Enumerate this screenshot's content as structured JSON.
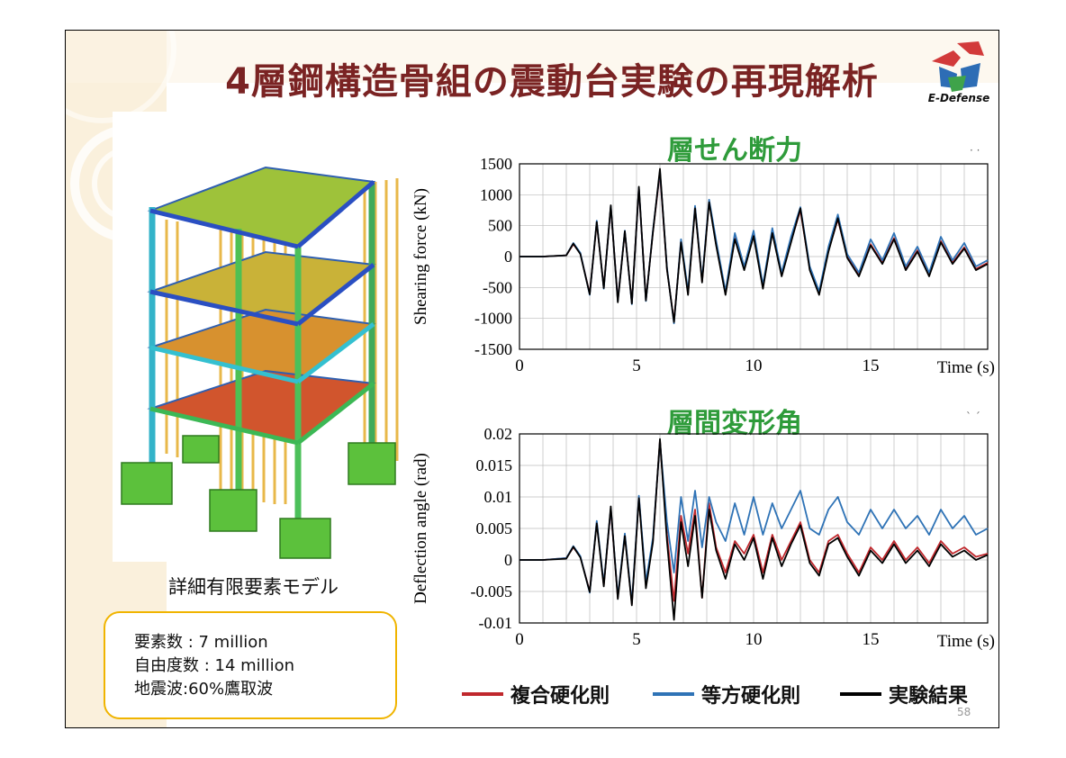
{
  "slide": {
    "title": "4層鋼構造骨組の震動台実験の再現解析",
    "logo_text": "E-Defense",
    "page_number": "58",
    "model_caption": "詳細有限要素モデル",
    "info_lines": [
      "要素数 : 7 million",
      "自由度数 : 14 million",
      "地震波:60%鷹取波"
    ]
  },
  "legend": [
    {
      "label": "複合硬化則",
      "color": "#c0282d"
    },
    {
      "label": "等方硬化則",
      "color": "#2f73b6"
    },
    {
      "label": "実験結果",
      "color": "#000000"
    }
  ],
  "chart_data": [
    {
      "type": "line",
      "title": "層せん断力",
      "xlabel": "Time (s)",
      "ylabel": "Shearing force (kN)",
      "xlim": [
        0,
        20
      ],
      "ylim": [
        -1500,
        1500
      ],
      "xticks": [
        0,
        5,
        10,
        15
      ],
      "yticks": [
        1500,
        1000,
        500,
        0,
        -500,
        -1000,
        -1500
      ],
      "ytick_labels": [
        "1500",
        "1000",
        "500",
        "0",
        "-500",
        "-1000",
        "-1500"
      ],
      "grid": true,
      "x": [
        0,
        1,
        2,
        2.3,
        2.6,
        3.0,
        3.3,
        3.6,
        3.9,
        4.2,
        4.5,
        4.8,
        5.1,
        5.4,
        5.7,
        6.0,
        6.3,
        6.6,
        6.9,
        7.2,
        7.5,
        7.8,
        8.1,
        8.4,
        8.8,
        9.2,
        9.6,
        10.0,
        10.4,
        10.8,
        11.2,
        11.6,
        12.0,
        12.4,
        12.8,
        13.2,
        13.6,
        14.0,
        14.5,
        15.0,
        15.5,
        16.0,
        16.5,
        17.0,
        17.5,
        18.0,
        18.5,
        19.0,
        19.5,
        20
      ],
      "series": [
        {
          "name": "複合硬化則",
          "values": [
            0,
            0,
            20,
            200,
            50,
            -600,
            550,
            -500,
            800,
            -700,
            400,
            -750,
            1100,
            -700,
            400,
            1350,
            -200,
            -1050,
            250,
            -600,
            800,
            -400,
            900,
            200,
            -600,
            300,
            -200,
            350,
            -500,
            400,
            -300,
            250,
            750,
            -200,
            -600,
            100,
            600,
            0,
            -300,
            200,
            -100,
            300,
            -200,
            100,
            -300,
            250,
            -100,
            150,
            -200,
            -100
          ]
        },
        {
          "name": "等方硬化則",
          "values": [
            0,
            0,
            20,
            220,
            60,
            -620,
            580,
            -520,
            820,
            -720,
            420,
            -770,
            1120,
            -720,
            420,
            1380,
            -180,
            -1080,
            280,
            -560,
            820,
            -380,
            920,
            260,
            -560,
            380,
            -160,
            420,
            -460,
            460,
            -260,
            320,
            800,
            -160,
            -560,
            160,
            680,
            40,
            -260,
            280,
            -60,
            380,
            -160,
            160,
            -260,
            320,
            -60,
            220,
            -160,
            -60
          ]
        },
        {
          "name": "実験結果",
          "values": [
            0,
            0,
            20,
            210,
            40,
            -610,
            560,
            -510,
            830,
            -740,
            410,
            -760,
            1130,
            -710,
            390,
            1420,
            -210,
            -1060,
            230,
            -620,
            780,
            -420,
            880,
            180,
            -620,
            280,
            -220,
            330,
            -520,
            380,
            -320,
            230,
            780,
            -220,
            -620,
            80,
            620,
            -20,
            -320,
            180,
            -120,
            280,
            -220,
            80,
            -320,
            230,
            -120,
            130,
            -220,
            -120
          ]
        }
      ]
    },
    {
      "type": "line",
      "title": "層間変形角",
      "xlabel": "Time (s)",
      "ylabel": "Deflection angle (rad)",
      "xlim": [
        0,
        20
      ],
      "ylim": [
        -0.01,
        0.02
      ],
      "xticks": [
        0,
        5,
        10,
        15
      ],
      "yticks": [
        0.02,
        0.015,
        0.01,
        0.005,
        0,
        -0.005,
        -0.01
      ],
      "ytick_labels": [
        "0.02",
        "0.015",
        "0.01",
        "0.005",
        "0",
        "-0.005",
        "-0.01"
      ],
      "grid": true,
      "x": [
        0,
        1,
        2,
        2.3,
        2.6,
        3.0,
        3.3,
        3.6,
        3.9,
        4.2,
        4.5,
        4.8,
        5.1,
        5.4,
        5.7,
        6.0,
        6.3,
        6.6,
        6.9,
        7.2,
        7.5,
        7.8,
        8.1,
        8.4,
        8.8,
        9.2,
        9.6,
        10.0,
        10.4,
        10.8,
        11.2,
        11.6,
        12.0,
        12.4,
        12.8,
        13.2,
        13.6,
        14.0,
        14.5,
        15.0,
        15.5,
        16.0,
        16.5,
        17.0,
        17.5,
        18.0,
        18.5,
        19.0,
        19.5,
        20
      ],
      "series": [
        {
          "name": "複合硬化則",
          "values": [
            0,
            0,
            0.0003,
            0.002,
            0.0005,
            -0.005,
            0.006,
            -0.004,
            0.008,
            -0.006,
            0.004,
            -0.007,
            0.01,
            -0.004,
            0.003,
            0.019,
            0.004,
            -0.0065,
            0.007,
            0.001,
            0.008,
            -0.006,
            0.009,
            0.002,
            -0.002,
            0.003,
            0.001,
            0.004,
            -0.002,
            0.004,
            0.0,
            0.003,
            0.006,
            0.0,
            -0.002,
            0.003,
            0.004,
            0.001,
            -0.002,
            0.002,
            0.0,
            0.003,
            0.0,
            0.002,
            -0.0005,
            0.003,
            0.001,
            0.002,
            0.0005,
            0.001
          ]
        },
        {
          "name": "等方硬化則",
          "values": [
            0,
            0,
            0.0003,
            0.0022,
            0.0006,
            -0.0052,
            0.0062,
            -0.0038,
            0.0082,
            -0.0058,
            0.0042,
            -0.0068,
            0.0102,
            -0.0035,
            0.0035,
            0.0188,
            0.006,
            -0.002,
            0.01,
            0.003,
            0.011,
            0.002,
            0.01,
            0.006,
            0.003,
            0.009,
            0.004,
            0.01,
            0.004,
            0.009,
            0.005,
            0.008,
            0.011,
            0.005,
            0.004,
            0.008,
            0.01,
            0.006,
            0.004,
            0.008,
            0.005,
            0.008,
            0.005,
            0.007,
            0.004,
            0.008,
            0.005,
            0.007,
            0.004,
            0.005
          ]
        },
        {
          "name": "実験結果",
          "values": [
            0,
            0,
            0.0002,
            0.0021,
            0.0004,
            -0.0051,
            0.0058,
            -0.0042,
            0.0085,
            -0.0062,
            0.0038,
            -0.0072,
            0.0098,
            -0.0045,
            0.0028,
            0.0192,
            0.003,
            -0.0095,
            0.006,
            -0.001,
            0.007,
            -0.006,
            0.008,
            0.0015,
            -0.003,
            0.0025,
            0.0,
            0.0035,
            -0.003,
            0.0035,
            -0.001,
            0.0025,
            0.0055,
            -0.0005,
            -0.0025,
            0.0025,
            0.0035,
            0.0005,
            -0.0025,
            0.0015,
            -0.0005,
            0.0025,
            -0.0005,
            0.0015,
            -0.001,
            0.0025,
            0.0005,
            0.0015,
            0.0,
            0.0008
          ]
        }
      ]
    }
  ]
}
